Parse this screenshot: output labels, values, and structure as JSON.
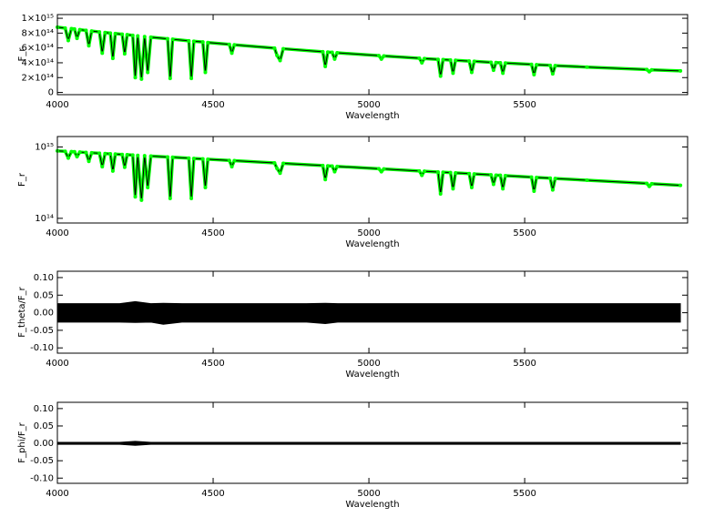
{
  "chart_data": [
    {
      "type": "line",
      "log": false,
      "xlabel": "Wavelength",
      "ylabel": "F_r",
      "x": [
        4000,
        4025,
        4035,
        4045,
        4055,
        4063,
        4072,
        4092,
        4101,
        4110,
        4135,
        4144,
        4153,
        4170,
        4178,
        4186,
        4208,
        4216,
        4224,
        4242,
        4250,
        4258,
        4270,
        4280,
        4290,
        4300,
        4354,
        4362,
        4370,
        4422,
        4430,
        4438,
        4467,
        4475,
        4483,
        4552,
        4560,
        4568,
        4697,
        4705,
        4715,
        4725,
        4852,
        4860,
        4868,
        4882,
        4890,
        4898,
        5032,
        5040,
        5048,
        5162,
        5170,
        5178,
        5222,
        5230,
        5238,
        5262,
        5270,
        5278,
        5322,
        5330,
        5338,
        5392,
        5400,
        5408,
        5422,
        5430,
        5438,
        5522,
        5530,
        5538,
        5582,
        5590,
        5598,
        5700,
        5892,
        5900,
        5908,
        6000
      ],
      "values": [
        880000000000000.0,
        868000000000000.0,
        700000000000000.0,
        860000000000000.0,
        855000000000000.0,
        730000000000000.0,
        846000000000000.0,
        836000000000000.0,
        630000000000000.0,
        828000000000000.0,
        816000000000000.0,
        530000000000000.0,
        808000000000000.0,
        800000000000000.0,
        460000000000000.0,
        794000000000000.0,
        784000000000000.0,
        520000000000000.0,
        778000000000000.0,
        769000000000000.0,
        200000000000000.0,
        762000000000000.0,
        180000000000000.0,
        753000000000000.0,
        270000000000000.0,
        745000000000000.0,
        723000000000000.0,
        190000000000000.0,
        717000000000000.0,
        696000000000000.0,
        190000000000000.0,
        690000000000000.0,
        680000000000000.0,
        270000000000000.0,
        673000000000000.0,
        648000000000000.0,
        530000000000000.0,
        642000000000000.0,
        598000000000000.0,
        500000000000000.0,
        430000000000000.0,
        589000000000000.0,
        549000000000000.0,
        350000000000000.0,
        544000000000000.0,
        540000000000000.0,
        450000000000000.0,
        534000000000000.0,
        496000000000000.0,
        450000000000000.0,
        492000000000000.0,
        461000000000000.0,
        400000000000000.0,
        457000000000000.0,
        446000000000000.0,
        220000000000000.0,
        442000000000000.0,
        437000000000000.0,
        260000000000000.0,
        433000000000000.0,
        423000000000000.0,
        270000000000000.0,
        419000000000000.0,
        406000000000000.0,
        300000000000000.0,
        402000000000000.0,
        400000000000000.0,
        260000000000000.0,
        396000000000000.0,
        378000000000000.0,
        240000000000000.0,
        374000000000000.0,
        365000000000000.0,
        250000000000000.0,
        361000000000000.0,
        342000000000000.0,
        309000000000000.0,
        280000000000000.0,
        305000000000000.0,
        290000000000000.0
      ],
      "line_color": "#000000",
      "marker_color": "#00ff00",
      "xlim": [
        4000,
        6023
      ],
      "xticks": [
        4000,
        4500,
        5000,
        5500
      ],
      "ylim": [
        -30000000000000.0,
        1050000000000000.0
      ],
      "yticks": [
        0,
        {
          "value": 200000000000000.0,
          "label": "2×10¹⁴"
        },
        {
          "value": 400000000000000.0,
          "label": "4×10¹⁴"
        },
        {
          "value": 600000000000000.0,
          "label": "6×10¹⁴"
        },
        {
          "value": 800000000000000.0,
          "label": "8×10¹⁴"
        },
        {
          "value": 1000000000000000.0,
          "label": "1×10¹⁵"
        }
      ]
    },
    {
      "type": "line",
      "log": true,
      "xlabel": "Wavelength",
      "ylabel": "F_r",
      "x": [
        4000,
        4025,
        4035,
        4045,
        4055,
        4063,
        4072,
        4092,
        4101,
        4110,
        4135,
        4144,
        4153,
        4170,
        4178,
        4186,
        4208,
        4216,
        4224,
        4242,
        4250,
        4258,
        4270,
        4280,
        4290,
        4300,
        4354,
        4362,
        4370,
        4422,
        4430,
        4438,
        4467,
        4475,
        4483,
        4552,
        4560,
        4568,
        4697,
        4705,
        4715,
        4725,
        4852,
        4860,
        4868,
        4882,
        4890,
        4898,
        5032,
        5040,
        5048,
        5162,
        5170,
        5178,
        5222,
        5230,
        5238,
        5262,
        5270,
        5278,
        5322,
        5330,
        5338,
        5392,
        5400,
        5408,
        5422,
        5430,
        5438,
        5522,
        5530,
        5538,
        5582,
        5590,
        5598,
        5700,
        5892,
        5900,
        5908,
        6000
      ],
      "values": [
        880000000000000.0,
        868000000000000.0,
        700000000000000.0,
        860000000000000.0,
        855000000000000.0,
        730000000000000.0,
        846000000000000.0,
        836000000000000.0,
        630000000000000.0,
        828000000000000.0,
        816000000000000.0,
        530000000000000.0,
        808000000000000.0,
        800000000000000.0,
        460000000000000.0,
        794000000000000.0,
        784000000000000.0,
        520000000000000.0,
        778000000000000.0,
        769000000000000.0,
        200000000000000.0,
        762000000000000.0,
        180000000000000.0,
        753000000000000.0,
        270000000000000.0,
        745000000000000.0,
        723000000000000.0,
        190000000000000.0,
        717000000000000.0,
        696000000000000.0,
        190000000000000.0,
        690000000000000.0,
        680000000000000.0,
        270000000000000.0,
        673000000000000.0,
        648000000000000.0,
        530000000000000.0,
        642000000000000.0,
        598000000000000.0,
        500000000000000.0,
        430000000000000.0,
        589000000000000.0,
        549000000000000.0,
        350000000000000.0,
        544000000000000.0,
        540000000000000.0,
        450000000000000.0,
        534000000000000.0,
        496000000000000.0,
        450000000000000.0,
        492000000000000.0,
        461000000000000.0,
        400000000000000.0,
        457000000000000.0,
        446000000000000.0,
        220000000000000.0,
        442000000000000.0,
        437000000000000.0,
        260000000000000.0,
        433000000000000.0,
        423000000000000.0,
        270000000000000.0,
        419000000000000.0,
        406000000000000.0,
        300000000000000.0,
        402000000000000.0,
        400000000000000.0,
        260000000000000.0,
        396000000000000.0,
        378000000000000.0,
        240000000000000.0,
        374000000000000.0,
        365000000000000.0,
        250000000000000.0,
        361000000000000.0,
        342000000000000.0,
        309000000000000.0,
        280000000000000.0,
        305000000000000.0,
        290000000000000.0
      ],
      "line_color": "#000000",
      "marker_color": "#00ff00",
      "xlim": [
        4000,
        6023
      ],
      "xticks": [
        4000,
        4500,
        5000,
        5500
      ],
      "ylim": [
        86000000000000.0,
        1400000000000000.0
      ],
      "yticks": [
        {
          "value": 100000000000000.0,
          "label": "10¹⁴"
        },
        {
          "value": 1000000000000000.0,
          "label": "10¹⁵"
        }
      ]
    },
    {
      "type": "band",
      "xlabel": "Wavelength",
      "ylabel": "F_theta/F_r",
      "color": "#000000",
      "x": [
        4000,
        4100,
        4200,
        4250,
        4300,
        4340,
        4400,
        4500,
        4600,
        4700,
        4800,
        4860,
        4900,
        5000,
        5100,
        5200,
        5300,
        5400,
        5500,
        5600,
        5700,
        5800,
        5900,
        6000
      ],
      "upper": [
        0.026,
        0.026,
        0.026,
        0.032,
        0.026,
        0.027,
        0.026,
        0.026,
        0.026,
        0.026,
        0.026,
        0.027,
        0.026,
        0.026,
        0.026,
        0.026,
        0.026,
        0.026,
        0.026,
        0.026,
        0.026,
        0.026,
        0.026,
        0.026
      ],
      "lower": [
        -0.027,
        -0.027,
        -0.027,
        -0.028,
        -0.027,
        -0.033,
        -0.027,
        -0.027,
        -0.027,
        -0.027,
        -0.027,
        -0.031,
        -0.027,
        -0.027,
        -0.027,
        -0.027,
        -0.027,
        -0.027,
        -0.027,
        -0.027,
        -0.027,
        -0.027,
        -0.027,
        -0.027
      ],
      "xlim": [
        4000,
        6023
      ],
      "xticks": [
        4000,
        4500,
        5000,
        5500
      ],
      "ylim": [
        -0.115,
        0.118
      ],
      "yticks": [
        {
          "value": -0.1,
          "label": "-0.10"
        },
        {
          "value": -0.05,
          "label": "-0.05"
        },
        {
          "value": 0,
          "label": "0.00"
        },
        {
          "value": 0.05,
          "label": "0.05"
        },
        {
          "value": 0.1,
          "label": "0.10"
        }
      ]
    },
    {
      "type": "band",
      "xlabel": "Wavelength",
      "ylabel": "F_phi/F_r",
      "color": "#000000",
      "x": [
        4000,
        4100,
        4200,
        4250,
        4300,
        4400,
        4500,
        4600,
        4700,
        4800,
        4900,
        5000,
        5100,
        5200,
        5300,
        5400,
        5500,
        5600,
        5700,
        5800,
        5900,
        6000
      ],
      "upper": [
        0.003,
        0.003,
        0.003,
        0.006,
        0.003,
        0.003,
        0.003,
        0.003,
        0.003,
        0.003,
        0.003,
        0.003,
        0.003,
        0.003,
        0.003,
        0.003,
        0.003,
        0.003,
        0.003,
        0.003,
        0.003,
        0.003
      ],
      "lower": [
        -0.003,
        -0.003,
        -0.003,
        -0.006,
        -0.003,
        -0.003,
        -0.003,
        -0.003,
        -0.003,
        -0.003,
        -0.003,
        -0.003,
        -0.003,
        -0.003,
        -0.003,
        -0.003,
        -0.003,
        -0.003,
        -0.003,
        -0.003,
        -0.003,
        -0.003
      ],
      "xlim": [
        4000,
        6023
      ],
      "xticks": [
        4000,
        4500,
        5000,
        5500
      ],
      "ylim": [
        -0.115,
        0.118
      ],
      "yticks": [
        {
          "value": -0.1,
          "label": "-0.10"
        },
        {
          "value": -0.05,
          "label": "-0.05"
        },
        {
          "value": 0,
          "label": "0.00"
        },
        {
          "value": 0.05,
          "label": "0.05"
        },
        {
          "value": 0.1,
          "label": "0.10"
        }
      ]
    }
  ]
}
